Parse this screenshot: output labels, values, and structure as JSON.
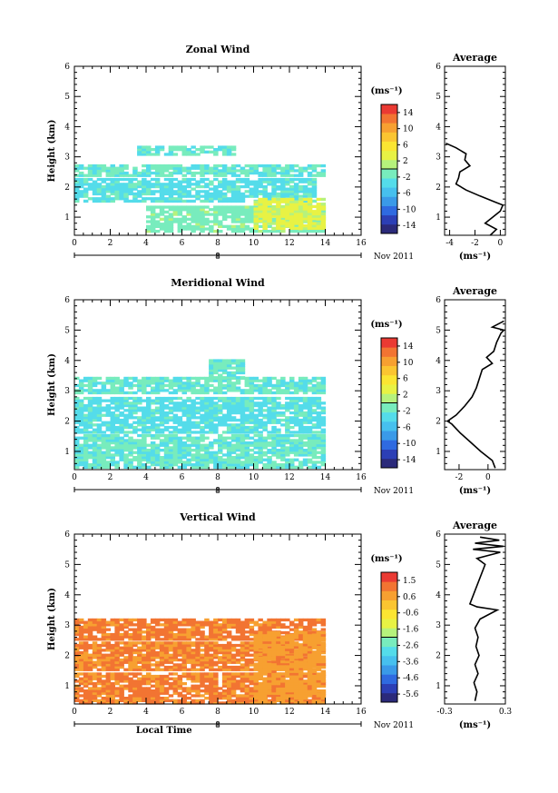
{
  "figure": {
    "xlabel": "Local Time",
    "date_label": "Nov 2011",
    "day_marker": "8"
  },
  "colors": {
    "colorbar": [
      "#2b2a7a",
      "#2c3fb5",
      "#2f6ae0",
      "#3a9ae8",
      "#46c0ee",
      "#54dcea",
      "#78ecbd",
      "#b6f27c",
      "#e8f244",
      "#fbe532",
      "#fbc531",
      "#f7a031",
      "#f27432",
      "#ea3a33"
    ]
  },
  "chart_data": [
    {
      "type": "heatmap",
      "title": "Zonal Wind",
      "ylabel": "Height (km)",
      "xlim": [
        0,
        16
      ],
      "ylim": [
        0.4,
        6
      ],
      "xticks": [
        0,
        2,
        4,
        6,
        8,
        10,
        12,
        14,
        16
      ],
      "yticks": [
        1,
        2,
        3,
        4,
        5,
        6
      ],
      "colorbar_unit": "(ms⁻¹)",
      "colorbar_ticks": [
        "14",
        "10",
        "6",
        "2",
        "-2",
        "-6",
        "-10",
        "-14"
      ],
      "colorbar_range": [
        -16,
        16
      ],
      "bands": [
        {
          "t0": 0.0,
          "t1": 14.0,
          "h0": 2.35,
          "h1": 2.75,
          "value": -2
        },
        {
          "t0": 3.5,
          "t1": 8.8,
          "h0": 3.05,
          "h1": 3.35,
          "value": -2
        },
        {
          "t0": 0.0,
          "t1": 13.5,
          "h0": 1.5,
          "h1": 2.3,
          "value": -3
        },
        {
          "t0": 4.0,
          "t1": 14.0,
          "h0": 0.5,
          "h1": 1.35,
          "value": -1
        },
        {
          "t0": 10.0,
          "t1": 14.0,
          "h0": 0.6,
          "h1": 1.6,
          "value": 3
        }
      ],
      "average": {
        "title": "Average",
        "xlabel": "(ms⁻¹)",
        "xlim": [
          -4.4,
          0.4
        ],
        "xticks": [
          "-4",
          "-2",
          "0"
        ],
        "heights": [
          0.4,
          0.6,
          0.8,
          1.0,
          1.2,
          1.4,
          1.5,
          1.7,
          1.9,
          2.1,
          2.3,
          2.5,
          2.7,
          2.9,
          3.1,
          3.3,
          3.45
        ],
        "values": [
          -0.8,
          -0.3,
          -1.2,
          -0.6,
          0.0,
          0.2,
          -0.4,
          -1.6,
          -2.7,
          -3.5,
          -3.3,
          -3.2,
          -2.4,
          -2.8,
          -2.7,
          -3.5,
          -4.3
        ]
      }
    },
    {
      "type": "heatmap",
      "title": "Meridional Wind",
      "ylabel": "Height (km)",
      "xlim": [
        0,
        16
      ],
      "ylim": [
        0.4,
        6
      ],
      "xticks": [
        0,
        2,
        4,
        6,
        8,
        10,
        12,
        14,
        16
      ],
      "yticks": [
        1,
        2,
        3,
        4,
        5,
        6
      ],
      "colorbar_unit": "(ms⁻¹)",
      "colorbar_ticks": [
        "14",
        "10",
        "6",
        "2",
        "-2",
        "-6",
        "-10",
        "-14"
      ],
      "colorbar_range": [
        -16,
        16
      ],
      "bands": [
        {
          "t0": 0.0,
          "t1": 14.0,
          "h0": 2.9,
          "h1": 3.4,
          "value": -2
        },
        {
          "t0": 0.0,
          "t1": 14.0,
          "h0": 1.6,
          "h1": 2.8,
          "value": -3
        },
        {
          "t0": 0.0,
          "t1": 14.0,
          "h0": 0.45,
          "h1": 1.5,
          "value": -2
        },
        {
          "t0": 7.5,
          "t1": 9.5,
          "h0": 3.4,
          "h1": 4.0,
          "value": -2
        }
      ],
      "average": {
        "title": "Average",
        "xlabel": "(ms⁻¹)",
        "xlim": [
          -3,
          1.2
        ],
        "xticks": [
          "-2",
          "0"
        ],
        "heights": [
          0.45,
          0.7,
          1.0,
          1.3,
          1.6,
          1.9,
          2.0,
          2.2,
          2.5,
          2.8,
          3.1,
          3.4,
          3.7,
          3.9,
          4.1,
          4.3,
          4.6,
          4.9,
          5.0,
          5.1,
          5.3
        ],
        "values": [
          0.5,
          0.3,
          -0.5,
          -1.2,
          -1.9,
          -2.5,
          -2.8,
          -2.2,
          -1.6,
          -1.1,
          -0.8,
          -0.6,
          -0.4,
          0.3,
          -0.1,
          0.4,
          0.6,
          0.9,
          1.1,
          0.3,
          1.1
        ]
      }
    },
    {
      "type": "heatmap",
      "title": "Vertical Wind",
      "ylabel": "Height (km)",
      "xlim": [
        0,
        16
      ],
      "ylim": [
        0.4,
        6
      ],
      "xticks": [
        0,
        2,
        4,
        6,
        8,
        10,
        12,
        14,
        16
      ],
      "yticks": [
        1,
        2,
        3,
        4,
        5,
        6
      ],
      "colorbar_unit": "(ms⁻¹)",
      "colorbar_ticks": [
        "1.5",
        "0.6",
        "-0.6",
        "-1.6",
        "-2.6",
        "-3.6",
        "-4.6",
        "-5.6"
      ],
      "colorbar_range": [
        -6.1,
        2.0
      ],
      "bands": [
        {
          "t0": 0.0,
          "t1": 14.0,
          "h0": 2.5,
          "h1": 3.2,
          "value": 1.0
        },
        {
          "t0": 0.0,
          "t1": 14.0,
          "h0": 1.5,
          "h1": 2.4,
          "value": 0.9
        },
        {
          "t0": 0.0,
          "t1": 14.0,
          "h0": 0.4,
          "h1": 1.4,
          "value": 0.95
        },
        {
          "t0": 10.0,
          "t1": 14.0,
          "h0": 0.4,
          "h1": 2.8,
          "value": 0.6
        }
      ],
      "average": {
        "title": "Average",
        "xlabel": "(ms⁻¹)",
        "xlim": [
          -0.3,
          0.3
        ],
        "xticks": [
          "-0.3",
          "0.3"
        ],
        "heights": [
          0.5,
          0.8,
          1.1,
          1.4,
          1.7,
          2.0,
          2.3,
          2.6,
          2.9,
          3.2,
          3.5,
          3.6,
          3.7,
          5.0,
          5.2,
          5.4,
          5.5,
          5.6,
          5.7,
          5.8,
          5.9
        ],
        "values": [
          0.0,
          0.02,
          -0.01,
          0.03,
          0.0,
          0.04,
          0.01,
          0.03,
          0.0,
          0.05,
          0.22,
          0.02,
          -0.05,
          0.1,
          0.02,
          0.25,
          -0.02,
          0.28,
          0.0,
          0.24,
          0.05
        ]
      }
    }
  ]
}
